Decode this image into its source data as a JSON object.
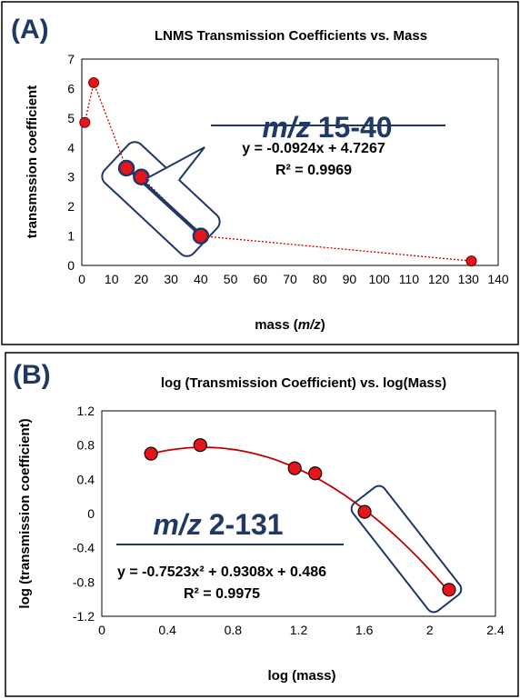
{
  "colors": {
    "point_fill": "#e8141b",
    "point_stroke": "#1f3864",
    "annotation": "#1f3864",
    "fit_line": "#1f3864",
    "trend_red": "#c00000"
  },
  "chart_data": [
    {
      "type": "scatter",
      "panel_label": "(A)",
      "title": "LNMS Transmission Coefficients vs. Mass",
      "xlabel_prefix": "mass (",
      "xlabel_italic": "m/z",
      "xlabel_suffix": ")",
      "ylabel": "transmssion coefficient",
      "xlim": [
        0,
        140
      ],
      "ylim": [
        0,
        7
      ],
      "x_ticks": [
        0,
        10,
        20,
        30,
        40,
        50,
        60,
        70,
        80,
        90,
        100,
        110,
        120,
        130,
        140
      ],
      "y_ticks": [
        0,
        1,
        2,
        3,
        4,
        5,
        6,
        7
      ],
      "x_tick_labels": [
        "0",
        "10",
        "20",
        "30",
        "40",
        "50",
        "60",
        "70",
        "80",
        "90",
        "100",
        "110",
        "120",
        "130",
        "140"
      ],
      "y_tick_labels": [
        "0",
        "1",
        "2",
        "3",
        "4",
        "5",
        "6",
        "7"
      ],
      "series": [
        {
          "x": [
            1,
            4,
            15,
            20,
            40,
            131
          ],
          "y": [
            4.85,
            6.2,
            3.3,
            3.0,
            1.0,
            0.15
          ]
        }
      ],
      "fit_range": [
        15,
        40
      ],
      "fit": {
        "slope": -0.0924,
        "intercept": 4.7267
      },
      "annotation": {
        "range_italic": "m/z",
        "range_value": "15-40",
        "equation": "y = -0.0924x + 4.7267",
        "r2": "R² = 0.9969"
      }
    },
    {
      "type": "scatter",
      "panel_label": "(B)",
      "title": "log (Transmission Coefficient) vs. log(Mass)",
      "xlabel": "log (mass)",
      "ylabel": "log (transmission coefficient)",
      "xlim": [
        0,
        2.4
      ],
      "ylim": [
        -1.2,
        1.2
      ],
      "x_ticks": [
        0,
        0.4,
        0.8,
        1.2,
        1.6,
        2.0,
        2.4
      ],
      "y_ticks": [
        -1.2,
        -0.8,
        -0.4,
        0,
        0.4,
        0.8,
        1.2
      ],
      "x_tick_labels": [
        "0",
        "0.4",
        "0.8",
        "1.2",
        "1.6",
        "2",
        "2.4"
      ],
      "y_tick_labels": [
        "-1.2",
        "-0.8",
        "-0.4",
        "0",
        "0.4",
        "0.8",
        "1.2"
      ],
      "series": [
        {
          "x": [
            0.3,
            0.6,
            1.176,
            1.301,
            1.602,
            2.117
          ],
          "y": [
            0.7,
            0.8,
            0.53,
            0.47,
            0.02,
            -0.89
          ]
        }
      ],
      "fit_range": [
        0.3,
        2.117
      ],
      "fit": {
        "a": -0.7523,
        "b": 0.9308,
        "c": 0.486
      },
      "annotation": {
        "range_italic": "m/z",
        "range_value": "2-131",
        "equation": "y = -0.7523x² + 0.9308x + 0.486",
        "r2": "R² = 0.9975"
      }
    }
  ]
}
